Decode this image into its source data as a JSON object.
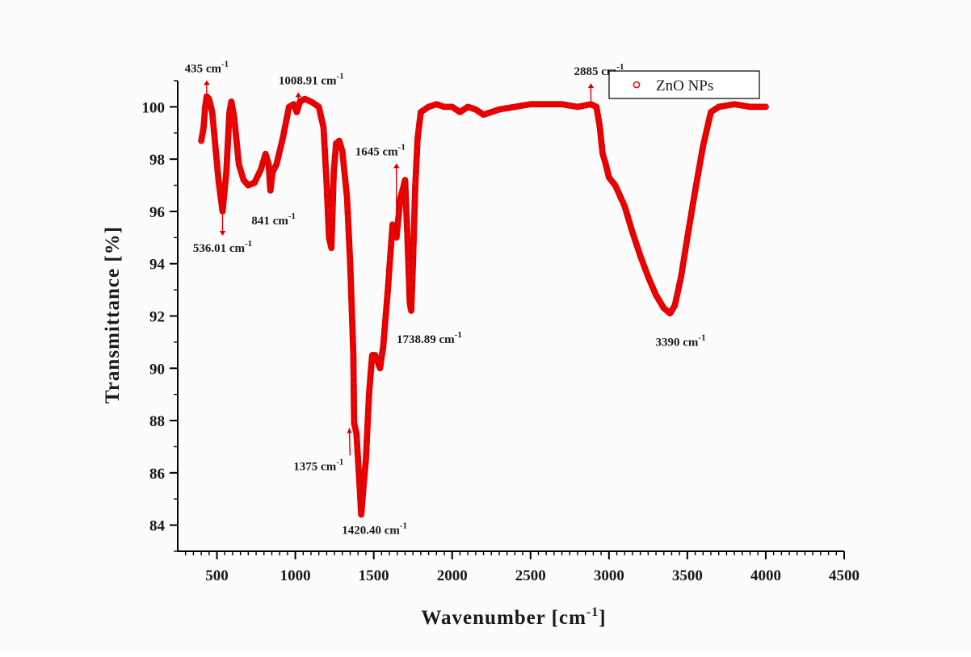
{
  "chart_data": {
    "type": "scatter",
    "title": "",
    "xlabel": "Wavenumber",
    "xlabel_unit": "[cm",
    "xlabel_sup": "-1",
    "xlabel_close": "]",
    "ylabel": "Transmittance [%]",
    "xlim": [
      250,
      4500
    ],
    "ylim": [
      83,
      101
    ],
    "xticks": [
      500,
      1000,
      1500,
      2000,
      2500,
      3000,
      3500,
      4000,
      4500
    ],
    "yticks": [
      84,
      86,
      88,
      90,
      92,
      94,
      96,
      98,
      100
    ],
    "grid": false,
    "legend_position": "top-right",
    "colors": {
      "series": "#e60000",
      "axis": "#000000",
      "annot_arrow": "#dd0000"
    },
    "series": [
      {
        "name": "ZnO NPs",
        "marker": "open-circle",
        "points": [
          [
            400,
            98.7
          ],
          [
            415,
            99.2
          ],
          [
            425,
            100.0
          ],
          [
            435,
            100.4
          ],
          [
            450,
            100.3
          ],
          [
            470,
            99.8
          ],
          [
            490,
            98.5
          ],
          [
            510,
            97.2
          ],
          [
            536,
            96.0
          ],
          [
            560,
            97.5
          ],
          [
            580,
            99.8
          ],
          [
            592,
            100.2
          ],
          [
            610,
            99.6
          ],
          [
            640,
            97.8
          ],
          [
            670,
            97.2
          ],
          [
            700,
            97.0
          ],
          [
            740,
            97.1
          ],
          [
            780,
            97.6
          ],
          [
            810,
            98.2
          ],
          [
            830,
            97.8
          ],
          [
            841,
            96.8
          ],
          [
            855,
            97.5
          ],
          [
            880,
            97.8
          ],
          [
            920,
            98.8
          ],
          [
            960,
            100.0
          ],
          [
            990,
            100.1
          ],
          [
            1008.91,
            99.8
          ],
          [
            1030,
            100.2
          ],
          [
            1060,
            100.3
          ],
          [
            1100,
            100.2
          ],
          [
            1150,
            100.0
          ],
          [
            1180,
            99.2
          ],
          [
            1200,
            97.0
          ],
          [
            1215,
            95.0
          ],
          [
            1230,
            94.6
          ],
          [
            1245,
            97.5
          ],
          [
            1260,
            98.6
          ],
          [
            1280,
            98.7
          ],
          [
            1300,
            98.3
          ],
          [
            1330,
            96.5
          ],
          [
            1350,
            94.0
          ],
          [
            1370,
            90.5
          ],
          [
            1375,
            87.9
          ],
          [
            1390,
            87.5
          ],
          [
            1405,
            86.0
          ],
          [
            1420.4,
            84.4
          ],
          [
            1435,
            85.5
          ],
          [
            1450,
            86.5
          ],
          [
            1470,
            89.0
          ],
          [
            1490,
            90.5
          ],
          [
            1510,
            90.5
          ],
          [
            1540,
            90.0
          ],
          [
            1560,
            90.8
          ],
          [
            1590,
            93.0
          ],
          [
            1620,
            95.5
          ],
          [
            1645,
            95.0
          ],
          [
            1670,
            96.5
          ],
          [
            1700,
            97.2
          ],
          [
            1715,
            95.0
          ],
          [
            1730,
            92.5
          ],
          [
            1738.89,
            92.2
          ],
          [
            1750,
            94.0
          ],
          [
            1765,
            97.0
          ],
          [
            1780,
            98.8
          ],
          [
            1800,
            99.8
          ],
          [
            1850,
            100.0
          ],
          [
            1900,
            100.1
          ],
          [
            1950,
            100.0
          ],
          [
            2000,
            100.0
          ],
          [
            2050,
            99.8
          ],
          [
            2100,
            100.0
          ],
          [
            2150,
            99.9
          ],
          [
            2200,
            99.7
          ],
          [
            2300,
            99.9
          ],
          [
            2400,
            100.0
          ],
          [
            2500,
            100.1
          ],
          [
            2600,
            100.1
          ],
          [
            2700,
            100.1
          ],
          [
            2800,
            100.0
          ],
          [
            2885,
            100.1
          ],
          [
            2920,
            100.0
          ],
          [
            2940,
            99.3
          ],
          [
            2960,
            98.2
          ],
          [
            2980,
            97.8
          ],
          [
            3000,
            97.3
          ],
          [
            3040,
            97.0
          ],
          [
            3100,
            96.2
          ],
          [
            3150,
            95.2
          ],
          [
            3200,
            94.3
          ],
          [
            3250,
            93.5
          ],
          [
            3300,
            92.8
          ],
          [
            3350,
            92.3
          ],
          [
            3390,
            92.1
          ],
          [
            3420,
            92.4
          ],
          [
            3460,
            93.5
          ],
          [
            3500,
            95.0
          ],
          [
            3550,
            96.8
          ],
          [
            3600,
            98.5
          ],
          [
            3650,
            99.8
          ],
          [
            3700,
            100.0
          ],
          [
            3800,
            100.1
          ],
          [
            3900,
            100.0
          ],
          [
            4000,
            100.0
          ]
        ]
      }
    ],
    "annotations": [
      {
        "text": "435 cm",
        "sup": "-1",
        "x": 435,
        "y": 100.4,
        "direction": "up"
      },
      {
        "text": "1008.91 cm",
        "sup": "-1",
        "x": 1008.91,
        "y": 100.0,
        "direction": "up"
      },
      {
        "text": "2885 cm",
        "sup": "-1",
        "x": 2885,
        "y": 100.1,
        "direction": "up"
      },
      {
        "text": "536.01 cm",
        "sup": "-1",
        "x": 536.01,
        "y": 96.0,
        "direction": "down"
      },
      {
        "text": "841 cm",
        "sup": "-1",
        "x": 841,
        "y": 96.8,
        "direction": "none"
      },
      {
        "text": "1645 cm",
        "sup": "-1",
        "x": 1645,
        "y": 95.0,
        "direction": "up"
      },
      {
        "text": "1738.89 cm",
        "sup": "-1",
        "x": 1738.89,
        "y": 92.2,
        "direction": "none"
      },
      {
        "text": "3390 cm",
        "sup": "-1",
        "x": 3390,
        "y": 92.1,
        "direction": "none"
      },
      {
        "text": "1375 cm",
        "sup": "-1",
        "x": 1375,
        "y": 87.9,
        "direction": "diagonal"
      },
      {
        "text": "1420.40 cm",
        "sup": "-1",
        "x": 1420.4,
        "y": 84.4,
        "direction": "none"
      }
    ]
  }
}
